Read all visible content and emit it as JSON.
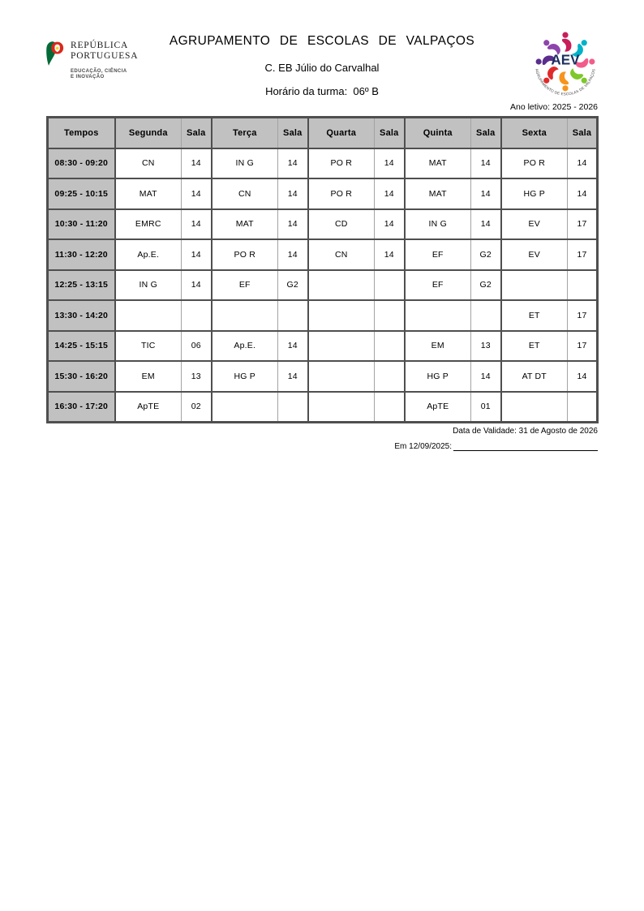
{
  "header": {
    "title": "AGRUPAMENTO DE ESCOLAS DE VALPAÇOS",
    "school": "C. EB Júlio do Carvalhal",
    "class_label": "Horário da turma:  06º B",
    "gov_logo": {
      "name_line1": "REPÚBLICA",
      "name_line2": "PORTUGUESA",
      "tagline_line1": "EDUCAÇÃO, CIÊNCIA",
      "tagline_line2": "E INOVAÇÃO",
      "green": "#046a38",
      "red": "#da291c",
      "yellow": "#f7d917"
    },
    "aev_logo": {
      "acronym": "AEV",
      "acronym_color": "#1c2e5e",
      "ring_text": "AGRUPAMENTO DE ESCOLAS DE VALPAÇOS",
      "ring_text_color": "#3a3a3a",
      "figure_colors": [
        "#c81e5a",
        "#00b2c8",
        "#f25c8a",
        "#7ec82a",
        "#f7941d",
        "#e02b2b",
        "#5b2d8e",
        "#8e44ad"
      ]
    }
  },
  "school_year": "Ano letivo: 2025 - 2026",
  "timetable": {
    "header_bg": "#c1c1c1",
    "columns": [
      "Tempos",
      "Segunda",
      "Sala",
      "Terça",
      "Sala",
      "Quarta",
      "Sala",
      "Quinta",
      "Sala",
      "Sexta",
      "Sala"
    ],
    "rows": [
      {
        "time": "08:30 - 09:20",
        "cells": [
          "CN",
          "14",
          "IN G",
          "14",
          "PO R",
          "14",
          "MAT",
          "14",
          "PO R",
          "14"
        ]
      },
      {
        "time": "09:25 - 10:15",
        "cells": [
          "MAT",
          "14",
          "CN",
          "14",
          "PO R",
          "14",
          "MAT",
          "14",
          "HG P",
          "14"
        ]
      },
      {
        "time": "10:30 - 11:20",
        "cells": [
          "EMRC",
          "14",
          "MAT",
          "14",
          "CD",
          "14",
          "IN G",
          "14",
          "EV",
          "17"
        ]
      },
      {
        "time": "11:30 - 12:20",
        "cells": [
          "Ap.E.",
          "14",
          "PO R",
          "14",
          "CN",
          "14",
          "EF",
          "G2",
          "EV",
          "17"
        ]
      },
      {
        "time": "12:25 - 13:15",
        "cells": [
          "IN G",
          "14",
          "EF",
          "G2",
          "",
          "",
          "EF",
          "G2",
          "",
          ""
        ]
      },
      {
        "time": "13:30 - 14:20",
        "cells": [
          "",
          "",
          "",
          "",
          "",
          "",
          "",
          "",
          "ET",
          "17"
        ]
      },
      {
        "time": "14:25 - 15:15",
        "cells": [
          "TIC",
          "06",
          "Ap.E.",
          "14",
          "",
          "",
          "EM",
          "13",
          "ET",
          "17"
        ]
      },
      {
        "time": "15:30 - 16:20",
        "cells": [
          "EM",
          "13",
          "HG P",
          "14",
          "",
          "",
          "HG P",
          "14",
          "AT DT",
          "14"
        ]
      },
      {
        "time": "16:30 - 17:20",
        "cells": [
          "ApTE",
          "02",
          "",
          "",
          "",
          "",
          "ApTE",
          "01",
          "",
          ""
        ]
      }
    ]
  },
  "footer": {
    "validity": "Data de Validade: 31 de Agosto de 2026",
    "signed_label": "Em 12/09/2025:"
  }
}
